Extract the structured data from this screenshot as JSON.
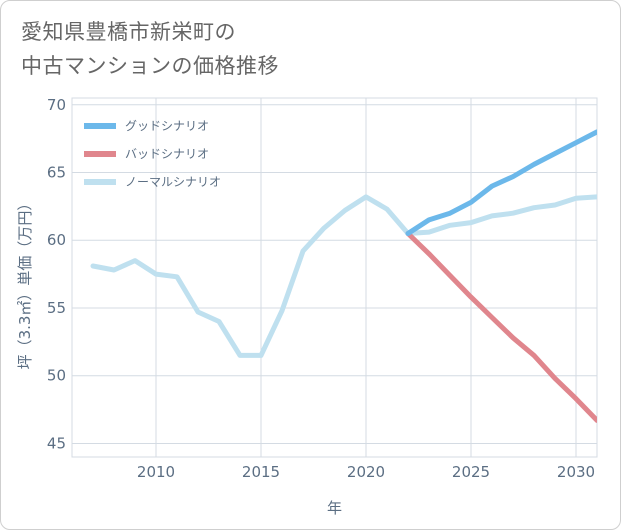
{
  "title_lines": [
    "愛知県豊橋市新栄町の",
    "中古マンションの価格推移"
  ],
  "chart_data": {
    "type": "line",
    "xlabel": "年",
    "ylabel": "坪（3.3㎡）単価（万円）",
    "xlim": [
      2006,
      2031
    ],
    "ylim": [
      44,
      70.5
    ],
    "x_ticks": [
      2010,
      2015,
      2020,
      2025,
      2030
    ],
    "y_ticks": [
      45,
      50,
      55,
      60,
      65,
      70
    ],
    "grid": true,
    "legend_position": "top-left",
    "series": [
      {
        "name": "グッドシナリオ",
        "color": "#6cb8ea",
        "x": [
          2022,
          2023,
          2024,
          2025,
          2026,
          2027,
          2028,
          2029,
          2030,
          2031
        ],
        "values": [
          60.5,
          61.5,
          62.0,
          62.8,
          64.0,
          64.7,
          65.6,
          66.4,
          67.2,
          68.0
        ]
      },
      {
        "name": "バッドシナリオ",
        "color": "#e0868d",
        "x": [
          2022,
          2023,
          2024,
          2025,
          2026,
          2027,
          2028,
          2029,
          2030,
          2031
        ],
        "values": [
          60.5,
          59.0,
          57.4,
          55.8,
          54.3,
          52.8,
          51.5,
          49.8,
          48.3,
          46.7
        ]
      },
      {
        "name": "ノーマルシナリオ",
        "color": "#bfe0ef",
        "x": [
          2007,
          2008,
          2009,
          2010,
          2011,
          2012,
          2013,
          2014,
          2015,
          2016,
          2017,
          2018,
          2019,
          2020,
          2021,
          2022,
          2023,
          2024,
          2025,
          2026,
          2027,
          2028,
          2029,
          2030,
          2031
        ],
        "values": [
          58.1,
          57.8,
          58.5,
          57.5,
          57.3,
          54.7,
          54.0,
          51.5,
          51.5,
          54.8,
          59.2,
          60.9,
          62.2,
          63.2,
          62.3,
          60.5,
          60.6,
          61.1,
          61.3,
          61.8,
          62.0,
          62.4,
          62.6,
          63.1,
          63.2
        ]
      }
    ]
  }
}
